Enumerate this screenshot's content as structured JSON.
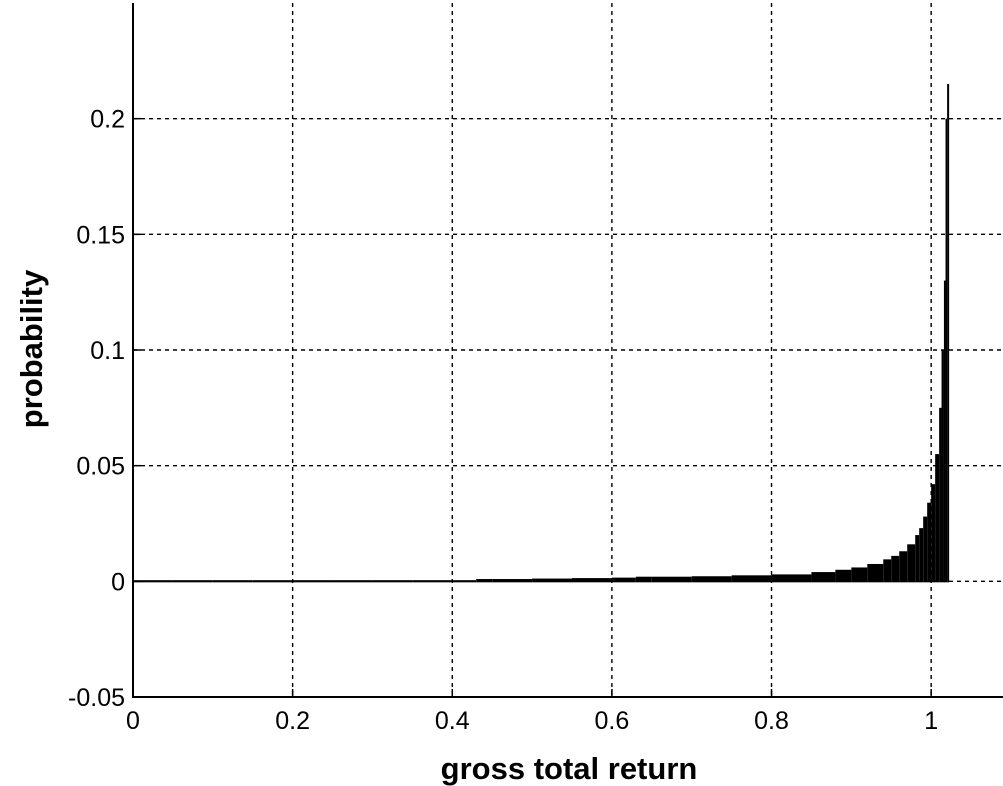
{
  "chart_data": {
    "type": "bar",
    "title": "",
    "xlabel": "gross total return",
    "ylabel": "probability",
    "xlim": [
      0,
      1.09
    ],
    "ylim": [
      -0.05,
      0.25
    ],
    "grid": true,
    "x_ticks": [
      {
        "value": 0,
        "label": "0"
      },
      {
        "value": 0.2,
        "label": "0.2"
      },
      {
        "value": 0.4,
        "label": "0.4"
      },
      {
        "value": 0.6,
        "label": "0.6"
      },
      {
        "value": 0.8,
        "label": "0.8"
      },
      {
        "value": 1.0,
        "label": "1"
      }
    ],
    "y_ticks": [
      {
        "value": -0.05,
        "label": "-0.05"
      },
      {
        "value": 0,
        "label": "0"
      },
      {
        "value": 0.05,
        "label": "0.05"
      },
      {
        "value": 0.1,
        "label": "0.1"
      },
      {
        "value": 0.15,
        "label": "0.15"
      },
      {
        "value": 0.2,
        "label": "0.2"
      }
    ],
    "bar_color": "#000000",
    "series": [
      {
        "x": [
          0.0,
          0.05,
          0.1,
          0.15,
          0.2,
          0.25,
          0.3,
          0.35,
          0.4,
          0.43,
          0.45,
          0.5,
          0.55,
          0.6,
          0.63,
          0.65,
          0.7,
          0.75,
          0.8,
          0.85,
          0.88,
          0.9,
          0.92,
          0.94,
          0.95,
          0.96,
          0.97,
          0.98,
          0.985,
          0.99,
          0.995,
          1.0,
          1.005,
          1.01,
          1.013,
          1.016,
          1.018,
          1.02
        ],
        "values": [
          0.0005,
          0.0005,
          0.0005,
          0.0005,
          0.0005,
          0.0005,
          0.0005,
          0.0005,
          0.0005,
          0.001,
          0.001,
          0.0012,
          0.0014,
          0.0016,
          0.002,
          0.002,
          0.0022,
          0.0026,
          0.003,
          0.004,
          0.005,
          0.006,
          0.0075,
          0.0095,
          0.011,
          0.013,
          0.016,
          0.02,
          0.023,
          0.028,
          0.034,
          0.042,
          0.055,
          0.075,
          0.1,
          0.13,
          0.2,
          0.215
        ]
      }
    ]
  }
}
